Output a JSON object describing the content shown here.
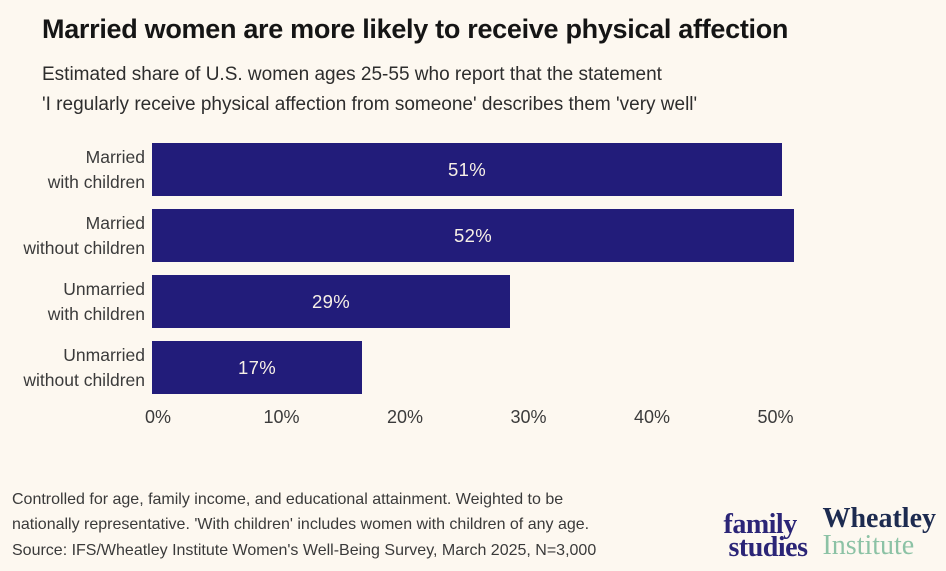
{
  "page": {
    "background": "#fdf8f0",
    "title": "Married women are more likely to receive physical affection",
    "subtitle": "Estimated share of U.S. women ages 25-55 who report that the statement\n'I regularly receive physical affection from someone' describes them 'very well'"
  },
  "chart_data": {
    "type": "bar",
    "orientation": "horizontal",
    "title": "Married women are more likely to receive physical affection",
    "subtitle": "Estimated share of U.S. women ages 25-55 who report that the statement 'I regularly receive physical affection from someone' describes them 'very well'",
    "categories": [
      "Married\nwith children",
      "Married\nwithout children",
      "Unmarried\nwith children",
      "Unmarried\nwithout children"
    ],
    "values": [
      51,
      52,
      29,
      17
    ],
    "value_labels": [
      "51%",
      "52%",
      "29%",
      "17%"
    ],
    "x_ticks": [
      "0%",
      "10%",
      "20%",
      "30%",
      "40%",
      "50%"
    ],
    "x_tick_values": [
      0,
      10,
      20,
      30,
      40,
      50
    ],
    "xlim": [
      0,
      52
    ],
    "grid": false,
    "legend": false,
    "bar_color": "#221c7a",
    "bar_label_color": "#f7f0e6"
  },
  "footer": {
    "notes": "Controlled for age, family income, and educational attainment. Weighted to be\nnationally representative. 'With children' includes women with children of any age.\nSource: IFS/Wheatley Institute Women's Well-Being Survey, March 2025, N=3,000",
    "logos": {
      "family_studies": {
        "line1": "family",
        "line2": "studies",
        "color": "#2b2577"
      },
      "wheatley": {
        "line1": "Wheatley",
        "line2": "Institute",
        "line1_color": "#1d2b50",
        "line2_color": "#8cc2a5"
      }
    }
  }
}
